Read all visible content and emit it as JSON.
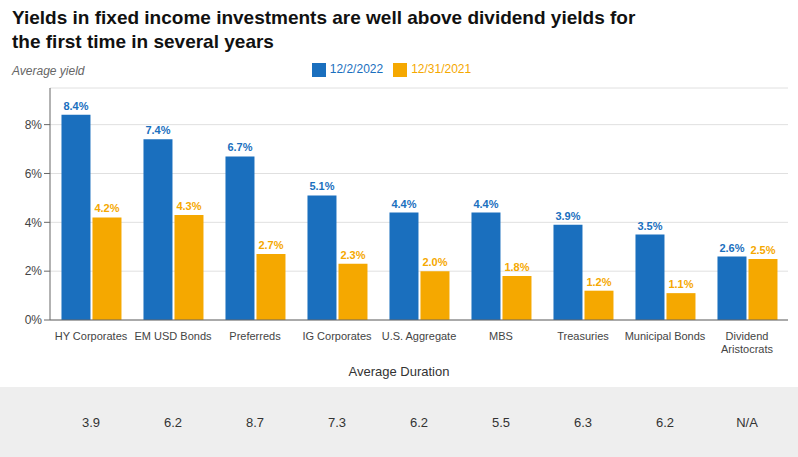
{
  "chart_data": {
    "type": "bar",
    "title": "Yields in fixed income investments are well above dividend yields for\nthe first time in several years",
    "ylabel": "Average yield",
    "categories": [
      "HY Corporates",
      "EM USD Bonds",
      "Preferreds",
      "IG Corporates",
      "U.S. Aggregate",
      "MBS",
      "Treasuries",
      "Municipal Bonds",
      "Dividend\nAristocrats"
    ],
    "series": [
      {
        "name": "12/2/2022",
        "color": "#1a6fbe",
        "values": [
          8.4,
          7.4,
          6.7,
          5.1,
          4.4,
          4.4,
          3.9,
          3.5,
          2.6
        ],
        "value_labels": [
          "8.4%",
          "7.4%",
          "6.7%",
          "5.1%",
          "4.4%",
          "4.4%",
          "3.9%",
          "3.5%",
          "2.6%"
        ]
      },
      {
        "name": "12/31/2021",
        "color": "#f5a800",
        "values": [
          4.2,
          4.3,
          2.7,
          2.3,
          2.0,
          1.8,
          1.2,
          1.1,
          2.5
        ],
        "value_labels": [
          "4.2%",
          "4.3%",
          "2.7%",
          "2.3%",
          "2.0%",
          "1.8%",
          "1.2%",
          "1.1%",
          "2.5%"
        ]
      }
    ],
    "ylim": [
      0,
      9.5
    ],
    "yticks": [
      {
        "value": 0,
        "label": "0%"
      },
      {
        "value": 2,
        "label": "2%"
      },
      {
        "value": 4,
        "label": "4%"
      },
      {
        "value": 6,
        "label": "6%"
      },
      {
        "value": 8,
        "label": "8%"
      }
    ],
    "grid": true,
    "legend": "top",
    "data_labels": true,
    "durations": {
      "title": "Average Duration",
      "values": [
        3.9,
        6.2,
        8.7,
        7.3,
        6.2,
        5.5,
        6.3,
        6.2,
        null
      ],
      "value_labels": [
        "3.9",
        "6.2",
        "8.7",
        "7.3",
        "6.2",
        "5.5",
        "6.3",
        "6.2",
        "N/A"
      ]
    }
  }
}
